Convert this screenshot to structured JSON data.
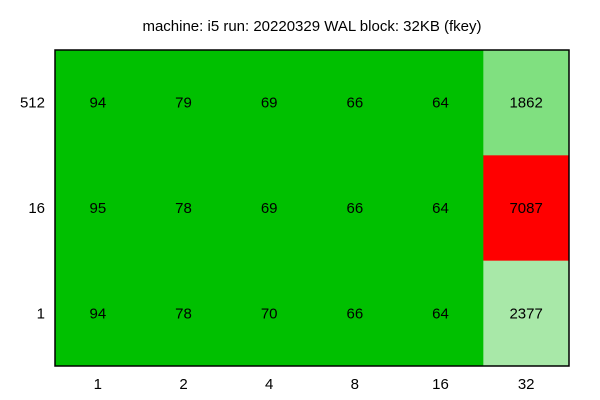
{
  "chart_data": {
    "type": "heatmap",
    "title": "machine: i5 run: 20220329 WAL block: 32KB (fkey)",
    "xlabel": "",
    "ylabel": "",
    "x_categories": [
      "1",
      "2",
      "4",
      "8",
      "16",
      "32"
    ],
    "y_categories": [
      "512",
      "16",
      "1"
    ],
    "values": [
      [
        94,
        79,
        69,
        66,
        64,
        1862
      ],
      [
        95,
        78,
        69,
        66,
        64,
        7087
      ],
      [
        94,
        78,
        70,
        66,
        64,
        2377
      ]
    ],
    "cell_colors": [
      [
        "#00c000",
        "#00c000",
        "#00c000",
        "#00c000",
        "#00c000",
        "#80e080"
      ],
      [
        "#00c000",
        "#00c000",
        "#00c000",
        "#00c000",
        "#00c000",
        "#ff0000"
      ],
      [
        "#00c000",
        "#00c000",
        "#00c000",
        "#00c000",
        "#00c000",
        "#a8e8a8"
      ]
    ],
    "grid": false,
    "legend": "none"
  }
}
